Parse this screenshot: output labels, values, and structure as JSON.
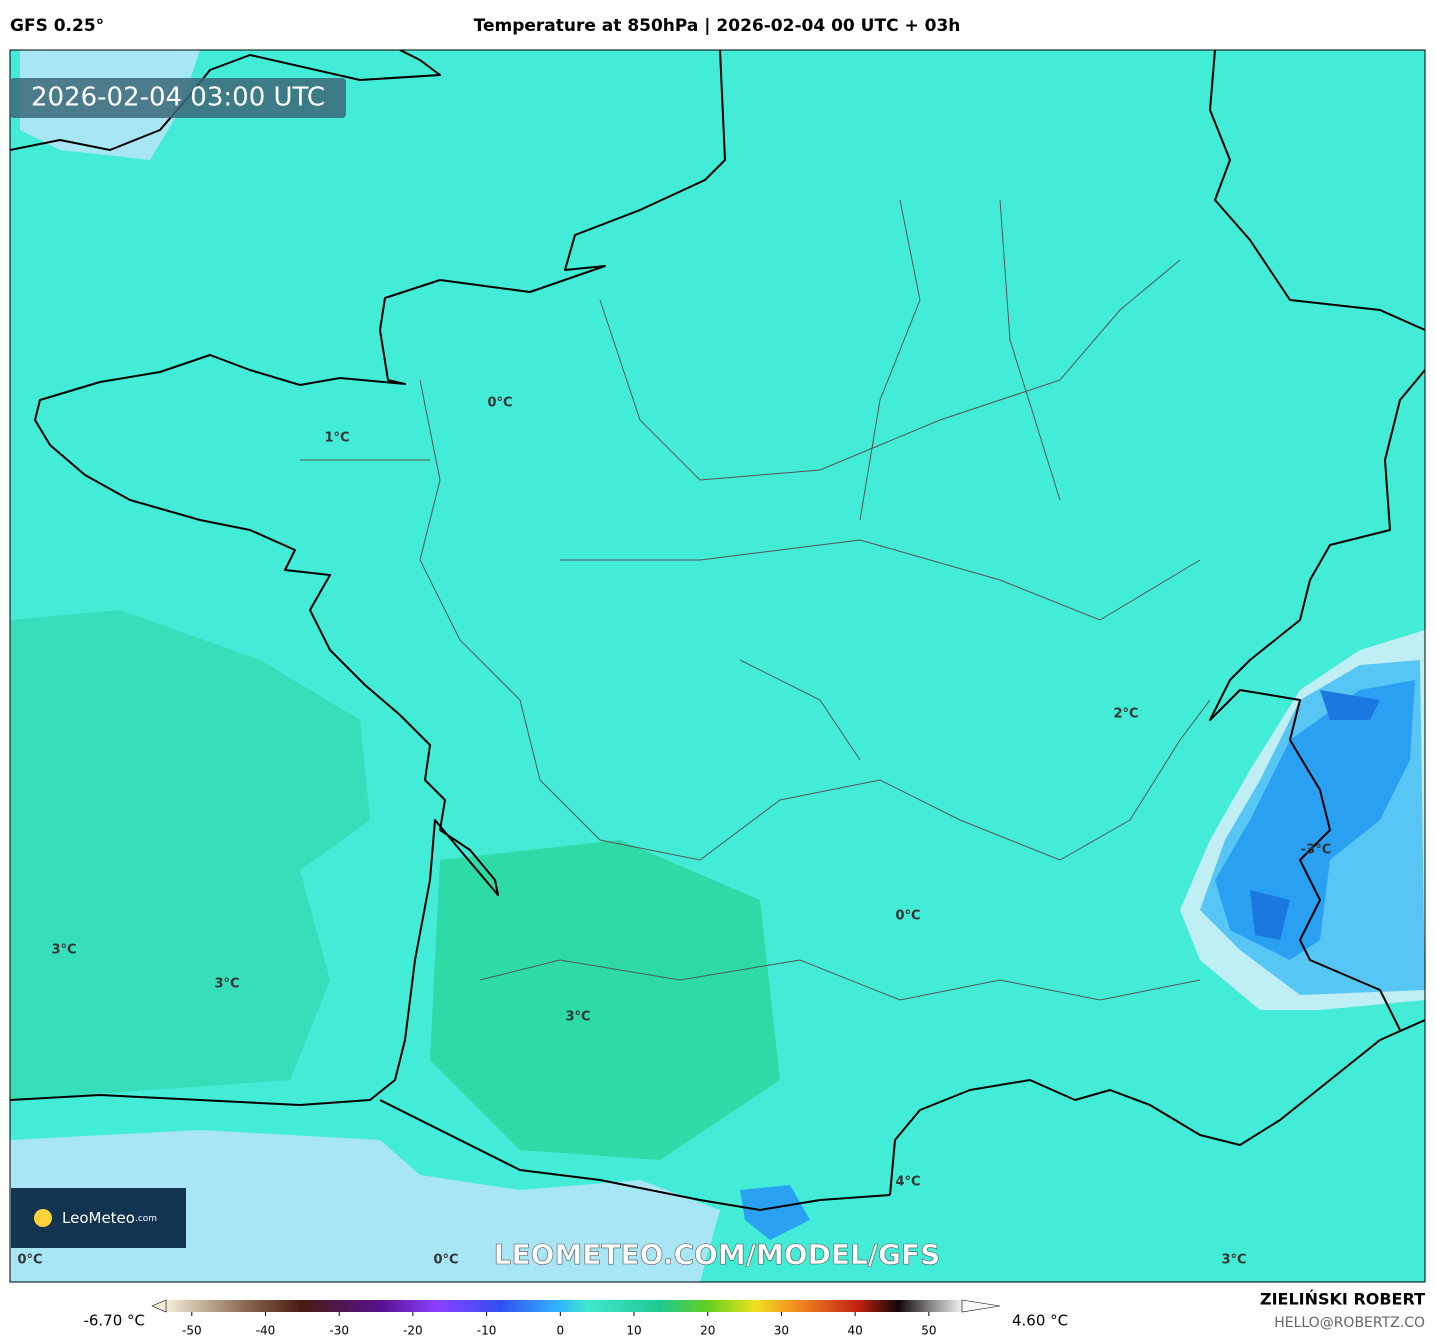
{
  "header": {
    "model": "GFS 0.25°",
    "title": "Temperature at 850hPa | 2026-02-04 00 UTC + 03h"
  },
  "map": {
    "valid_time": "2026-02-04 03:00 UTC",
    "labels": [
      "0°C",
      "1°C",
      "2°C",
      "-3°C",
      "0°C",
      "3°C",
      "3°C",
      "3°C",
      "4°C",
      "0°C",
      "0°C",
      "3°C"
    ],
    "logo": "LeoMeteo",
    "logo_suffix": ".com",
    "watermark": "LEOMETEO.COM/MODEL/GFS"
  },
  "colorbar": {
    "min_label": "-6.70 °C",
    "max_label": "4.60 °C",
    "lim": [
      -53.5,
      54.5
    ],
    "ticks": [
      -50,
      -40,
      -30,
      -20,
      -10,
      0,
      10,
      20,
      30,
      40,
      50
    ]
  },
  "credit": {
    "author": "ZIELIŃSKI ROBERT",
    "contact": "HELLO@ROBERTZ.CO"
  }
}
